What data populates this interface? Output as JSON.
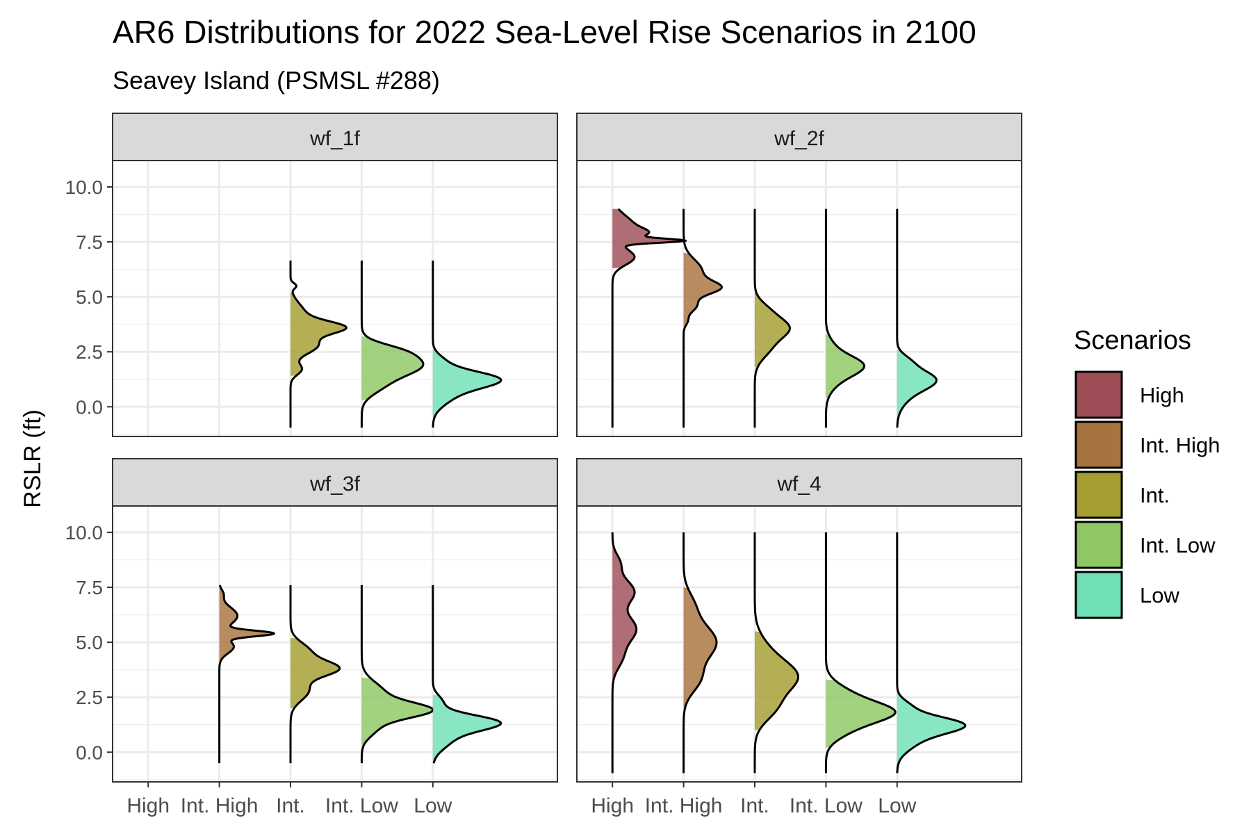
{
  "chart_data": {
    "type": "violin",
    "title": "AR6 Distributions for 2022 Sea-Level Rise Scenarios in 2100",
    "subtitle": "Seavey Island (PSMSL #288)",
    "ylabel": "RSLR (ft)",
    "xlabel": "",
    "ylim": [
      -1.4,
      12.5
    ],
    "yticks": [
      "10.0",
      "7.5",
      "5.0",
      "2.5",
      "0.0"
    ],
    "ytick_values": [
      10,
      7.5,
      5,
      2.5,
      0
    ],
    "categories": [
      "High",
      "Int. High",
      "Int.",
      "Int. Low",
      "Low"
    ],
    "grid": true,
    "legend": {
      "title": "Scenarios",
      "position": "right",
      "items": [
        {
          "label": "High",
          "color": "#9E4D57"
        },
        {
          "label": "Int. High",
          "color": "#A7733E"
        },
        {
          "label": "Int.",
          "color": "#A49D30"
        },
        {
          "label": "Int. Low",
          "color": "#8EC764"
        },
        {
          "label": "Low",
          "color": "#6FE0B5"
        }
      ]
    },
    "panels": [
      {
        "name": "wf_1f",
        "series": [
          {
            "scenario": "Int.",
            "ymin": -0.95,
            "ymax": 6.65,
            "peaks": [
              [
                5.5,
                0.03,
                0.12
              ],
              [
                4.2,
                0.08,
                0.5
              ],
              [
                3.6,
                0.25,
                0.28
              ],
              [
                2.8,
                0.15,
                0.4
              ],
              [
                1.7,
                0.06,
                0.25
              ]
            ],
            "shade": [
              1.4,
              5.2
            ]
          },
          {
            "scenario": "Int. Low",
            "ymin": -0.95,
            "ymax": 6.65,
            "peaks": [
              [
                1.9,
                0.33,
                0.52
              ],
              [
                2.6,
                0.1,
                0.3
              ],
              [
                0.9,
                0.08,
                0.4
              ]
            ],
            "shade": [
              0.3,
              3.2
            ]
          },
          {
            "scenario": "Low",
            "ymin": -0.95,
            "ymax": 6.65,
            "peaks": [
              [
                1.25,
                0.35,
                0.38
              ],
              [
                0.5,
                0.1,
                0.45
              ],
              [
                2.1,
                0.05,
                0.3
              ]
            ],
            "shade": [
              -0.6,
              2.6
            ]
          }
        ]
      },
      {
        "name": "wf_2f",
        "series": [
          {
            "scenario": "High",
            "ymin": -0.95,
            "ymax": 9.0,
            "peaks": [
              [
                7.55,
                0.32,
                0.09
              ],
              [
                8.2,
                0.12,
                0.5
              ],
              [
                6.8,
                0.12,
                0.35
              ],
              [
                7.9,
                0.1,
                0.2
              ]
            ],
            "shade": [
              6.3,
              9.0
            ]
          },
          {
            "scenario": "Int. High",
            "ymin": -0.95,
            "ymax": 9.0,
            "peaks": [
              [
                5.4,
                0.18,
                0.3
              ],
              [
                6.2,
                0.1,
                0.5
              ],
              [
                4.6,
                0.07,
                0.3
              ],
              [
                3.9,
                0.02,
                0.2
              ]
            ],
            "shade": [
              3.5,
              7.0
            ]
          },
          {
            "scenario": "Int.",
            "ymin": -0.95,
            "ymax": 9.0,
            "peaks": [
              [
                3.6,
                0.17,
                0.45
              ],
              [
                2.7,
                0.08,
                0.5
              ],
              [
                4.4,
                0.06,
                0.4
              ]
            ],
            "shade": [
              1.8,
              5.6
            ]
          },
          {
            "scenario": "Int. Low",
            "ymin": -0.95,
            "ymax": 9.0,
            "peaks": [
              [
                1.9,
                0.19,
                0.45
              ],
              [
                1.2,
                0.05,
                0.5
              ],
              [
                2.8,
                0.03,
                0.4
              ]
            ],
            "shade": [
              0.4,
              3.3
            ]
          },
          {
            "scenario": "Low",
            "ymin": -0.95,
            "ymax": 9.0,
            "peaks": [
              [
                1.25,
                0.2,
                0.45
              ],
              [
                0.5,
                0.05,
                0.5
              ],
              [
                2.1,
                0.05,
                0.3
              ]
            ],
            "shade": [
              -0.6,
              2.6
            ]
          }
        ]
      },
      {
        "name": "wf_3f",
        "series": [
          {
            "scenario": "Int. High",
            "ymin": -0.5,
            "ymax": 7.6,
            "peaks": [
              [
                5.4,
                0.28,
                0.13
              ],
              [
                6.2,
                0.1,
                0.4
              ],
              [
                4.8,
                0.08,
                0.3
              ],
              [
                7.2,
                0.02,
                0.2
              ]
            ],
            "shade": [
              2.8,
              7.6
            ]
          },
          {
            "scenario": "Int.",
            "ymin": -0.5,
            "ymax": 7.6,
            "peaks": [
              [
                3.8,
                0.25,
                0.35
              ],
              [
                4.6,
                0.1,
                0.4
              ],
              [
                2.8,
                0.1,
                0.45
              ]
            ],
            "shade": [
              2.0,
              5.2
            ]
          },
          {
            "scenario": "Int. Low",
            "ymin": -0.5,
            "ymax": 7.6,
            "peaks": [
              [
                1.9,
                0.35,
                0.35
              ],
              [
                2.7,
                0.12,
                0.5
              ],
              [
                1.1,
                0.08,
                0.4
              ]
            ],
            "shade": [
              0.3,
              3.4
            ]
          },
          {
            "scenario": "Low",
            "ymin": -0.5,
            "ymax": 7.6,
            "peaks": [
              [
                1.35,
                0.35,
                0.35
              ],
              [
                0.6,
                0.1,
                0.45
              ],
              [
                2.3,
                0.05,
                0.3
              ]
            ],
            "shade": [
              -0.6,
              2.6
            ]
          }
        ]
      },
      {
        "name": "wf_4",
        "series": [
          {
            "scenario": "High",
            "ymin": -0.95,
            "ymax": 10.0,
            "peaks": [
              [
                5.6,
                0.13,
                0.6
              ],
              [
                7.3,
                0.12,
                0.55
              ],
              [
                8.6,
                0.04,
                0.4
              ],
              [
                4.3,
                0.05,
                0.5
              ]
            ],
            "shade": [
              3.2,
              10.0
            ]
          },
          {
            "scenario": "Int. High",
            "ymin": -0.95,
            "ymax": 10.0,
            "peaks": [
              [
                5.0,
                0.18,
                0.8
              ],
              [
                3.3,
                0.08,
                0.6
              ],
              [
                6.7,
                0.05,
                0.6
              ]
            ],
            "shade": [
              2.0,
              7.5
            ]
          },
          {
            "scenario": "Int.",
            "ymin": -0.95,
            "ymax": 10.0,
            "peaks": [
              [
                3.4,
                0.22,
                0.7
              ],
              [
                2.0,
                0.1,
                0.6
              ],
              [
                4.6,
                0.06,
                0.7
              ]
            ],
            "shade": [
              1.0,
              5.5
            ]
          },
          {
            "scenario": "Int. Low",
            "ymin": -0.95,
            "ymax": 10.0,
            "peaks": [
              [
                1.8,
                0.33,
                0.45
              ],
              [
                2.6,
                0.12,
                0.5
              ],
              [
                1.0,
                0.1,
                0.45
              ]
            ],
            "shade": [
              0.2,
              3.3
            ]
          },
          {
            "scenario": "Low",
            "ymin": -0.95,
            "ymax": 10.0,
            "peaks": [
              [
                1.25,
                0.35,
                0.38
              ],
              [
                0.5,
                0.1,
                0.45
              ],
              [
                2.1,
                0.06,
                0.3
              ]
            ],
            "shade": [
              -0.6,
              2.8
            ]
          }
        ]
      }
    ]
  }
}
